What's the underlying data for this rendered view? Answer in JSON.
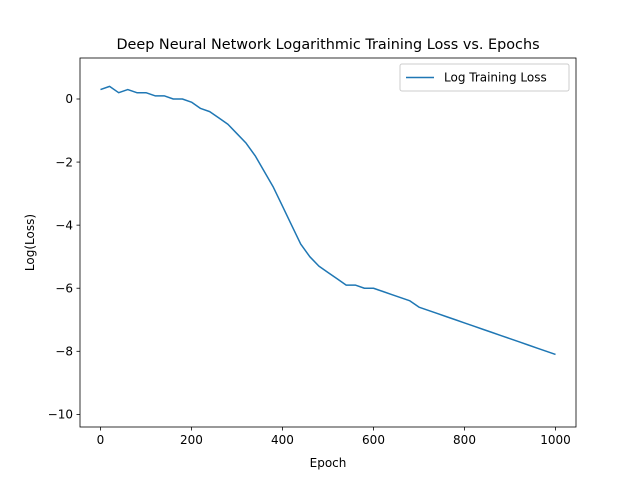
{
  "chart_data": {
    "type": "line",
    "title": "Deep Neural Network Logarithmic Training Loss vs. Epochs",
    "xlabel": "Epoch",
    "ylabel": "Log(Loss)",
    "xlim": [
      -45,
      1045
    ],
    "ylim": [
      -10.4,
      1.3
    ],
    "xticks": [
      0,
      200,
      400,
      600,
      800,
      1000
    ],
    "yticks": [
      0,
      -2,
      -4,
      -6,
      -8,
      -10
    ],
    "grid": false,
    "legend_position": "top-right",
    "series": [
      {
        "name": "Log Training Loss",
        "color": "#1f77b4",
        "x": [
          0,
          20,
          40,
          60,
          80,
          100,
          120,
          140,
          160,
          180,
          200,
          220,
          240,
          260,
          280,
          300,
          320,
          340,
          360,
          380,
          400,
          420,
          440,
          460,
          480,
          500,
          520,
          540,
          560,
          580,
          600,
          620,
          640,
          660,
          680,
          700,
          720,
          740,
          760,
          780,
          800,
          820,
          840,
          860,
          880,
          900,
          920,
          940,
          960,
          980,
          1000
        ],
        "y": [
          0.3,
          0.4,
          0.2,
          0.3,
          0.2,
          0.2,
          0.1,
          0.1,
          0.0,
          0.0,
          -0.1,
          -0.3,
          -0.4,
          -0.6,
          -0.8,
          -1.1,
          -1.4,
          -1.8,
          -2.3,
          -2.8,
          -3.4,
          -4.0,
          -4.6,
          -5.0,
          -5.3,
          -5.5,
          -5.7,
          -5.9,
          -5.9,
          -6.0,
          -6.0,
          -6.1,
          -6.2,
          -6.3,
          -6.4,
          -6.6,
          -6.7,
          -6.8,
          -6.9,
          -7.0,
          -7.1,
          -7.2,
          -7.3,
          -7.4,
          -7.5,
          -7.6,
          -7.7,
          -7.8,
          -7.9,
          -8.0,
          -8.1
        ]
      }
    ]
  }
}
